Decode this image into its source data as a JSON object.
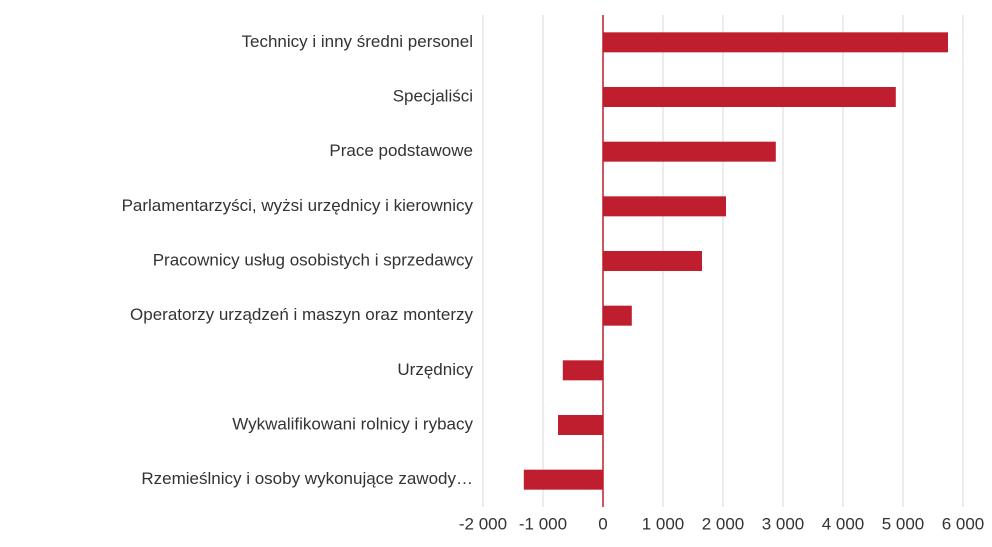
{
  "chart_data": {
    "type": "barh",
    "categories": [
      "Technicy i inny średni personel",
      "Specjaliści",
      "Prace podstawowe",
      "Parlamentarzyści, wyżsi urzędnicy i kierownicy",
      "Pracownicy usług osobistych i sprzedawcy",
      "Operatorzy urządzeń i maszyn oraz monterzy",
      "Urzędnicy",
      "Wykwalifikowani rolnicy i rybacy",
      "Rzemieślnicy i osoby wykonujące zawody…"
    ],
    "values": [
      5750,
      4880,
      2880,
      2050,
      1650,
      480,
      -670,
      -750,
      -1320
    ],
    "color": "#be1e2d",
    "xlim": [
      -2000,
      6000
    ],
    "xticks": [
      {
        "value": -2000,
        "label": "-2 000"
      },
      {
        "value": -1000,
        "label": "-1 000"
      },
      0,
      {
        "value": 1000,
        "label": "1 000"
      },
      {
        "value": 2000,
        "label": "2 000"
      },
      {
        "value": 3000,
        "label": "3 000"
      },
      {
        "value": 4000,
        "label": "4 000"
      },
      {
        "value": 5000,
        "label": "5 000"
      },
      {
        "value": 6000,
        "label": "6 000"
      }
    ],
    "grid": true
  }
}
